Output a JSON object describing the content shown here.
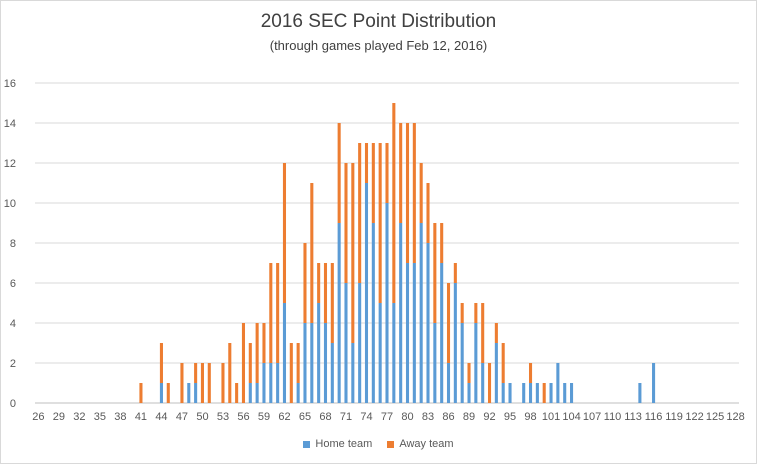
{
  "chart_data": {
    "type": "bar",
    "stacked": true,
    "title": "2016 SEC Point Distribution",
    "subtitle": "(through games played Feb 12, 2016)",
    "xlabel": "",
    "ylabel": "",
    "ylim": [
      0,
      16
    ],
    "yticks": [
      0,
      2,
      4,
      6,
      8,
      10,
      12,
      14,
      16
    ],
    "x_tick_labels": [
      "26",
      "29",
      "32",
      "35",
      "38",
      "41",
      "44",
      "47",
      "50",
      "53",
      "56",
      "59",
      "62",
      "65",
      "68",
      "71",
      "74",
      "77",
      "80",
      "83",
      "86",
      "89",
      "92",
      "95",
      "98",
      "101",
      "104",
      "107",
      "110",
      "113",
      "116",
      "119",
      "122",
      "125",
      "128"
    ],
    "x": [
      26,
      27,
      28,
      29,
      30,
      31,
      32,
      33,
      34,
      35,
      36,
      37,
      38,
      39,
      40,
      41,
      42,
      43,
      44,
      45,
      46,
      47,
      48,
      49,
      50,
      51,
      52,
      53,
      54,
      55,
      56,
      57,
      58,
      59,
      60,
      61,
      62,
      63,
      64,
      65,
      66,
      67,
      68,
      69,
      70,
      71,
      72,
      73,
      74,
      75,
      76,
      77,
      78,
      79,
      80,
      81,
      82,
      83,
      84,
      85,
      86,
      87,
      88,
      89,
      90,
      91,
      92,
      93,
      94,
      95,
      96,
      97,
      98,
      99,
      100,
      101,
      102,
      103,
      104,
      105,
      106,
      107,
      108,
      109,
      110,
      111,
      112,
      113,
      114,
      115,
      116,
      117,
      118,
      119,
      120,
      121,
      122,
      123,
      124,
      125,
      126,
      127,
      128
    ],
    "series": [
      {
        "name": "Home team",
        "color": "#5b9bd5",
        "values": [
          0,
          0,
          0,
          0,
          0,
          0,
          0,
          0,
          0,
          0,
          0,
          0,
          0,
          0,
          0,
          0,
          0,
          0,
          1,
          0,
          0,
          0,
          1,
          1,
          0,
          0,
          0,
          0,
          0,
          0,
          0,
          1,
          1,
          2,
          2,
          2,
          5,
          0,
          1,
          4,
          4,
          5,
          4,
          3,
          9,
          6,
          3,
          6,
          11,
          9,
          5,
          10,
          5,
          9,
          7,
          7,
          9,
          8,
          4,
          7,
          2,
          6,
          4,
          1,
          4,
          2,
          0,
          3,
          1,
          1,
          0,
          1,
          1,
          1,
          0,
          1,
          2,
          1,
          1,
          0,
          0,
          0,
          0,
          0,
          0,
          0,
          0,
          0,
          1,
          0,
          2,
          0,
          0,
          0,
          0,
          0,
          0,
          0,
          0,
          0,
          0,
          0,
          0
        ],
        "pad_zero_note": ""
      },
      {
        "name": "Away team",
        "color": "#ed7d31",
        "values": [
          0,
          0,
          0,
          0,
          0,
          0,
          0,
          0,
          0,
          0,
          0,
          0,
          0,
          0,
          0,
          1,
          0,
          0,
          2,
          1,
          0,
          2,
          0,
          1,
          2,
          2,
          0,
          2,
          3,
          1,
          4,
          2,
          3,
          2,
          5,
          5,
          7,
          3,
          2,
          4,
          7,
          2,
          3,
          4,
          5,
          6,
          9,
          7,
          2,
          4,
          8,
          3,
          10,
          5,
          7,
          7,
          3,
          3,
          5,
          2,
          4,
          1,
          1,
          1,
          1,
          3,
          2,
          1,
          2,
          0,
          0,
          0,
          1,
          0,
          1,
          0,
          0,
          0,
          0,
          0,
          0,
          0,
          0,
          0,
          0,
          0,
          0,
          0,
          0,
          0,
          0,
          0,
          0,
          0,
          0,
          0,
          0,
          0,
          0,
          0,
          0,
          0,
          0
        ]
      }
    ],
    "legend": {
      "position": "bottom",
      "items": [
        "Home team",
        "Away team"
      ]
    },
    "grid": {
      "horizontal": true,
      "vertical": false
    }
  }
}
